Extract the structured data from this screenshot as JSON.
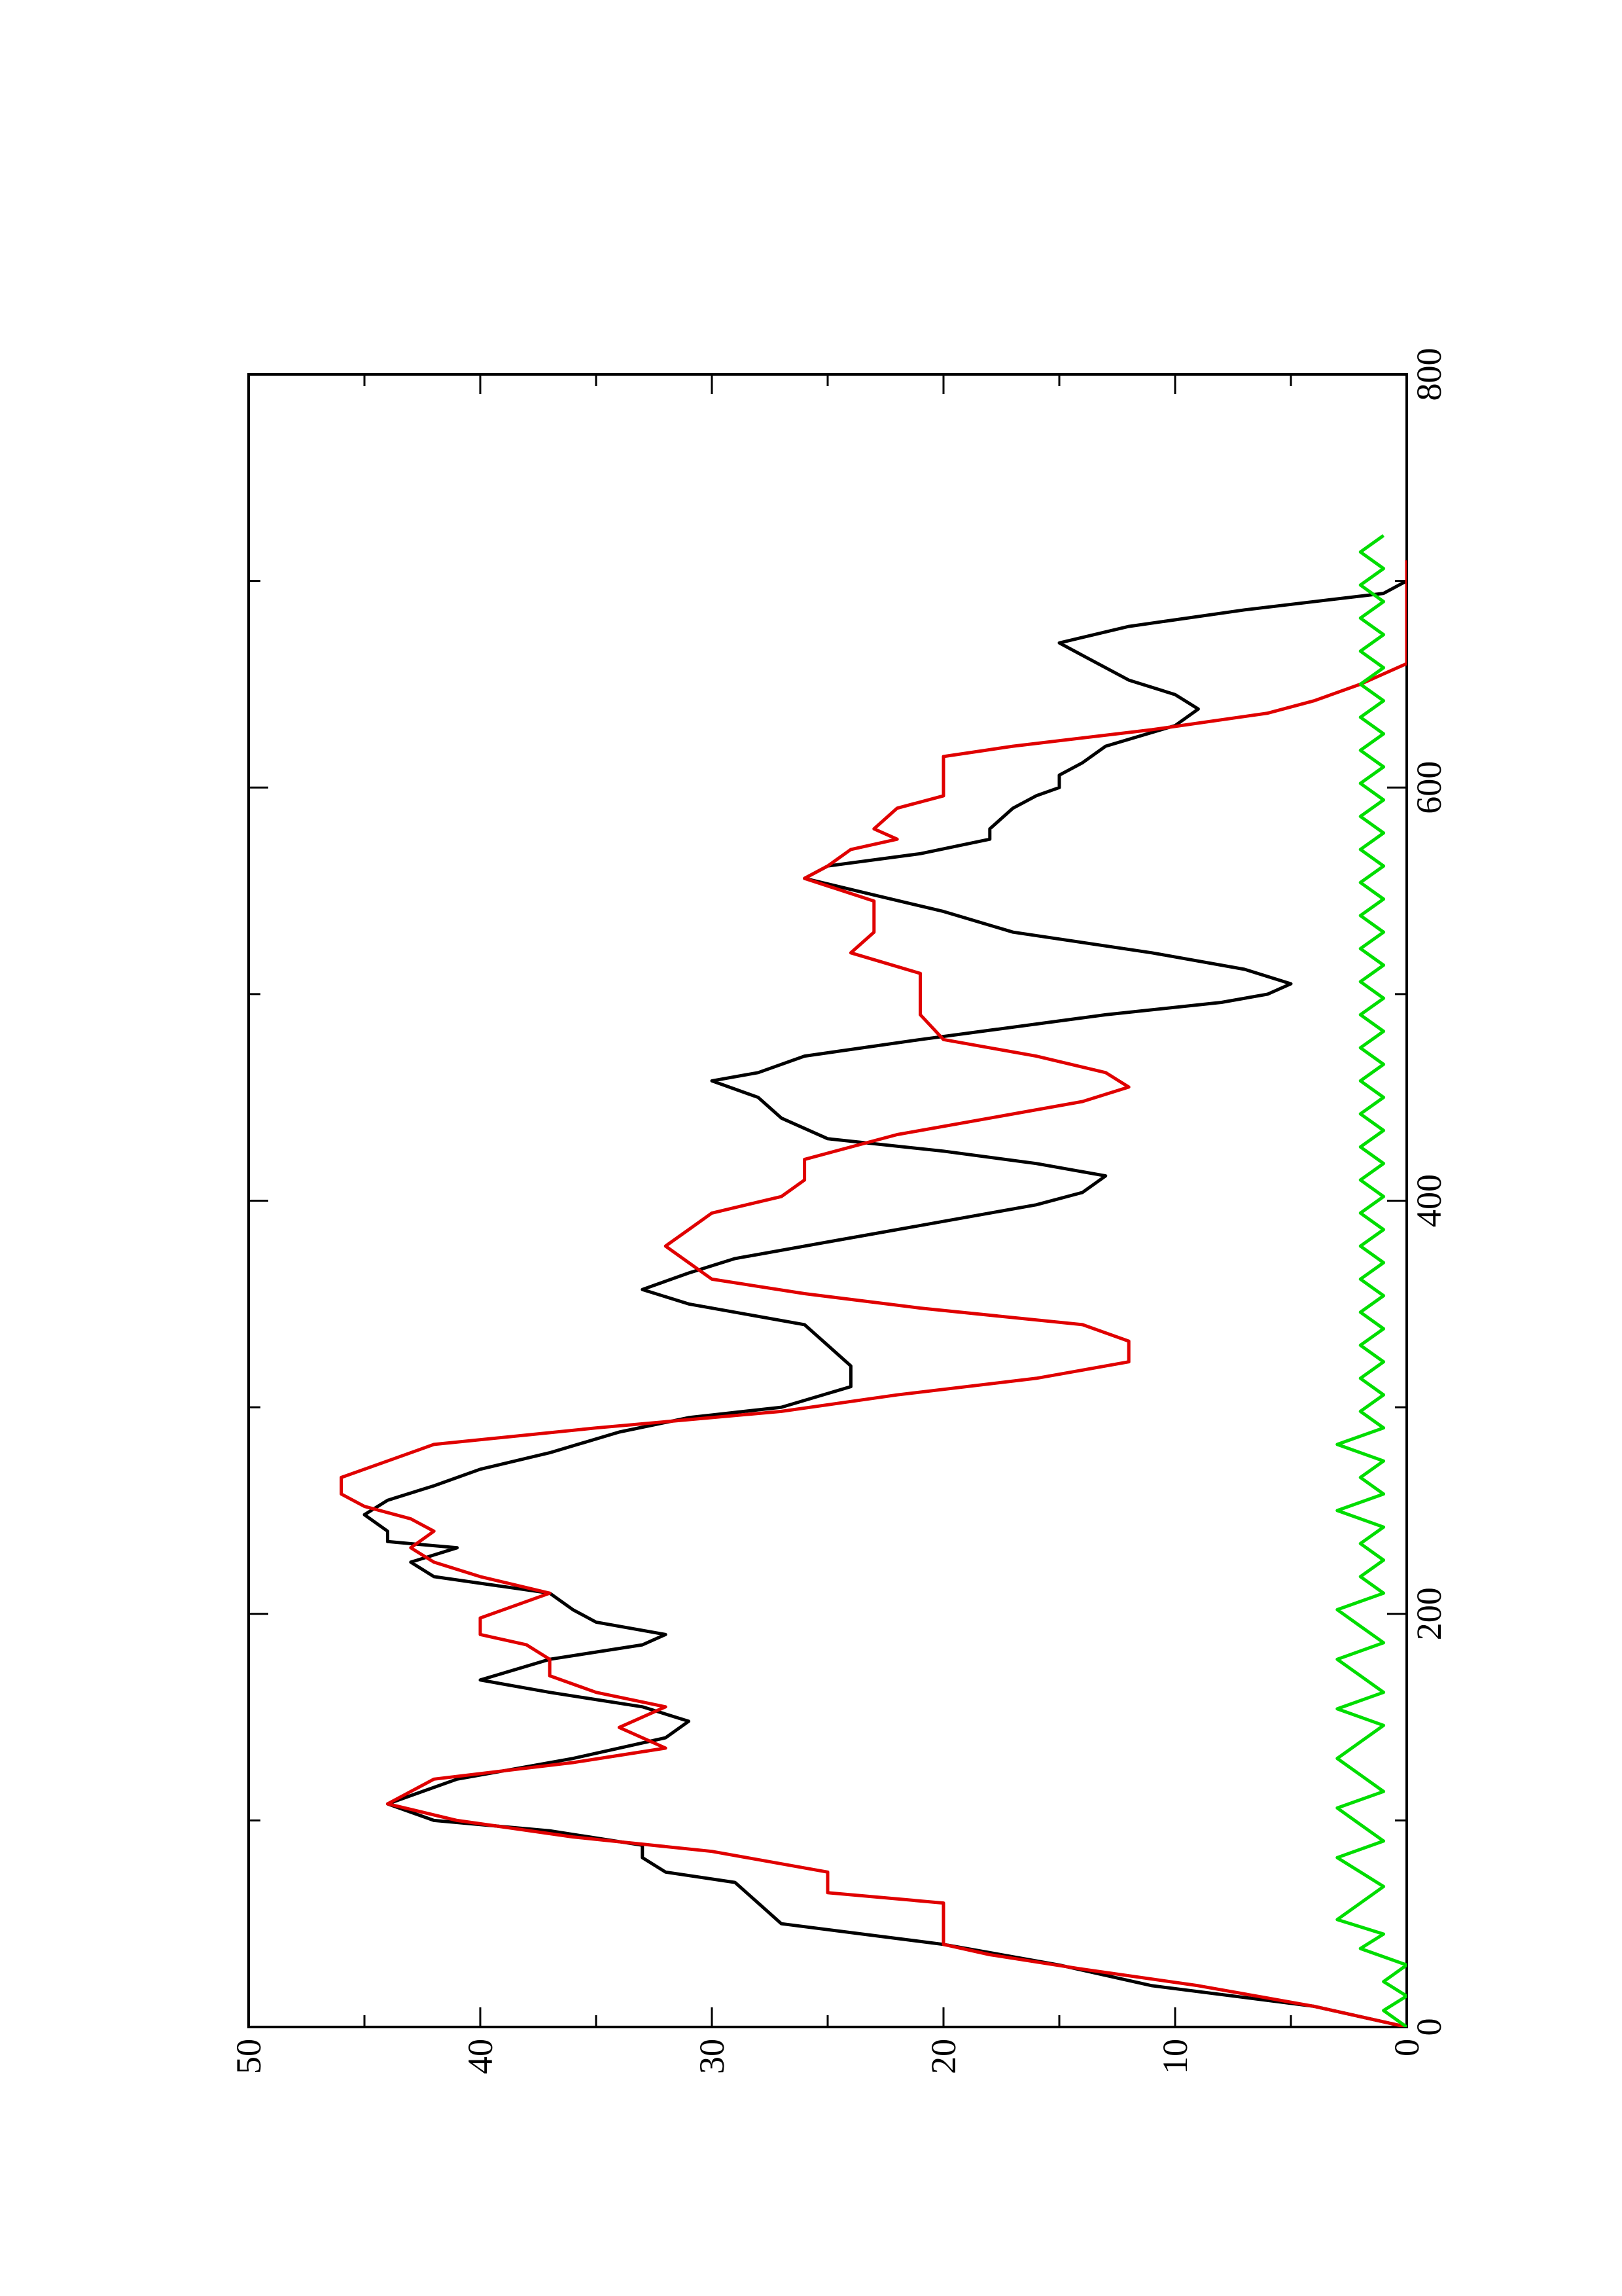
{
  "chart_data": {
    "type": "line",
    "title": "",
    "xlabel": "",
    "ylabel": "",
    "orientation": "rotated-90-ccw",
    "xlim": [
      0,
      800
    ],
    "ylim": [
      0,
      50
    ],
    "grid": false,
    "legend": "none",
    "x_ticks": [
      {
        "value": 0,
        "label": "0"
      },
      {
        "value": 200,
        "label": "200"
      },
      {
        "value": 400,
        "label": "400"
      },
      {
        "value": 600,
        "label": "600"
      },
      {
        "value": 800,
        "label": "800"
      }
    ],
    "x_minor_ticks": [
      100,
      300,
      500,
      700
    ],
    "y_ticks": [
      {
        "value": 0,
        "label": "0"
      },
      {
        "value": 10,
        "label": "10"
      },
      {
        "value": 20,
        "label": "20"
      },
      {
        "value": 30,
        "label": "30"
      },
      {
        "value": 40,
        "label": "40"
      },
      {
        "value": 50,
        "label": "50"
      }
    ],
    "y_minor_ticks": [
      5,
      15,
      25,
      35,
      45
    ],
    "series": [
      {
        "color": "#000000",
        "points": [
          [
            0,
            0
          ],
          [
            10,
            4
          ],
          [
            20,
            11
          ],
          [
            30,
            15
          ],
          [
            40,
            20
          ],
          [
            50,
            27
          ],
          [
            60,
            28
          ],
          [
            70,
            29
          ],
          [
            75,
            32
          ],
          [
            82,
            33
          ],
          [
            88,
            33
          ],
          [
            95,
            37
          ],
          [
            100,
            42
          ],
          [
            108,
            44
          ],
          [
            120,
            41
          ],
          [
            130,
            36
          ],
          [
            140,
            32
          ],
          [
            148,
            31
          ],
          [
            155,
            33
          ],
          [
            162,
            37
          ],
          [
            168,
            40
          ],
          [
            178,
            37
          ],
          [
            185,
            33
          ],
          [
            190,
            32
          ],
          [
            196,
            35
          ],
          [
            202,
            36
          ],
          [
            210,
            37
          ],
          [
            218,
            42
          ],
          [
            225,
            43
          ],
          [
            232,
            41
          ],
          [
            235,
            44
          ],
          [
            240,
            44
          ],
          [
            248,
            45
          ],
          [
            255,
            44
          ],
          [
            262,
            42
          ],
          [
            270,
            40
          ],
          [
            278,
            37
          ],
          [
            288,
            34
          ],
          [
            295,
            31
          ],
          [
            300,
            27
          ],
          [
            310,
            24
          ],
          [
            320,
            24
          ],
          [
            330,
            25
          ],
          [
            340,
            26
          ],
          [
            350,
            31
          ],
          [
            357,
            33
          ],
          [
            365,
            31
          ],
          [
            372,
            29
          ],
          [
            380,
            25
          ],
          [
            390,
            20
          ],
          [
            398,
            16
          ],
          [
            404,
            14
          ],
          [
            412,
            13
          ],
          [
            418,
            16
          ],
          [
            424,
            20
          ],
          [
            430,
            25
          ],
          [
            440,
            27
          ],
          [
            450,
            28
          ],
          [
            458,
            30
          ],
          [
            462,
            28
          ],
          [
            470,
            26
          ],
          [
            478,
            21
          ],
          [
            490,
            13
          ],
          [
            496,
            8
          ],
          [
            500,
            6
          ],
          [
            505,
            5
          ],
          [
            512,
            7
          ],
          [
            520,
            11
          ],
          [
            530,
            17
          ],
          [
            540,
            20
          ],
          [
            548,
            23
          ],
          [
            556,
            26
          ],
          [
            562,
            25
          ],
          [
            568,
            21
          ],
          [
            575,
            18
          ],
          [
            580,
            18
          ],
          [
            590,
            17
          ],
          [
            596,
            16
          ],
          [
            600,
            15
          ],
          [
            606,
            15
          ],
          [
            612,
            14
          ],
          [
            620,
            13
          ],
          [
            630,
            10
          ],
          [
            638,
            9
          ],
          [
            645,
            10
          ],
          [
            652,
            12
          ],
          [
            658,
            13
          ],
          [
            664,
            14
          ],
          [
            670,
            15
          ],
          [
            678,
            12
          ],
          [
            686,
            7
          ],
          [
            690,
            4
          ],
          [
            694,
            1
          ],
          [
            700,
            0
          ],
          [
            710,
            0
          ]
        ]
      },
      {
        "color": "#e00000",
        "points": [
          [
            0,
            0
          ],
          [
            10,
            4
          ],
          [
            20,
            9
          ],
          [
            28,
            14
          ],
          [
            35,
            18
          ],
          [
            40,
            20
          ],
          [
            50,
            20
          ],
          [
            60,
            20
          ],
          [
            65,
            25
          ],
          [
            75,
            25
          ],
          [
            85,
            30
          ],
          [
            92,
            36
          ],
          [
            100,
            41
          ],
          [
            108,
            44
          ],
          [
            120,
            42
          ],
          [
            128,
            36
          ],
          [
            135,
            32
          ],
          [
            145,
            34
          ],
          [
            155,
            32
          ],
          [
            162,
            35
          ],
          [
            170,
            37
          ],
          [
            178,
            37
          ],
          [
            185,
            38
          ],
          [
            190,
            40
          ],
          [
            198,
            40
          ],
          [
            210,
            37
          ],
          [
            218,
            40
          ],
          [
            225,
            42
          ],
          [
            232,
            43
          ],
          [
            240,
            42
          ],
          [
            246,
            43
          ],
          [
            252,
            45
          ],
          [
            258,
            46
          ],
          [
            266,
            46
          ],
          [
            274,
            44
          ],
          [
            282,
            42
          ],
          [
            290,
            35
          ],
          [
            298,
            27
          ],
          [
            306,
            22
          ],
          [
            314,
            16
          ],
          [
            322,
            12
          ],
          [
            332,
            12
          ],
          [
            340,
            14
          ],
          [
            348,
            21
          ],
          [
            355,
            26
          ],
          [
            362,
            30
          ],
          [
            370,
            31
          ],
          [
            378,
            32
          ],
          [
            386,
            31
          ],
          [
            394,
            30
          ],
          [
            402,
            27
          ],
          [
            410,
            26
          ],
          [
            420,
            26
          ],
          [
            432,
            22
          ],
          [
            440,
            18
          ],
          [
            448,
            14
          ],
          [
            455,
            12
          ],
          [
            462,
            13
          ],
          [
            470,
            16
          ],
          [
            478,
            20
          ],
          [
            490,
            21
          ],
          [
            500,
            21
          ],
          [
            510,
            21
          ],
          [
            520,
            24
          ],
          [
            530,
            23
          ],
          [
            545,
            23
          ],
          [
            556,
            26
          ],
          [
            562,
            25
          ],
          [
            570,
            24
          ],
          [
            575,
            22
          ],
          [
            580,
            23
          ],
          [
            590,
            22
          ],
          [
            596,
            20
          ],
          [
            602,
            20
          ],
          [
            608,
            20
          ],
          [
            615,
            20
          ],
          [
            620,
            17
          ],
          [
            628,
            11
          ],
          [
            636,
            6
          ],
          [
            642,
            4
          ],
          [
            650,
            2
          ],
          [
            660,
            0
          ],
          [
            670,
            0
          ],
          [
            680,
            0
          ],
          [
            690,
            0
          ],
          [
            700,
            0
          ],
          [
            710,
            0
          ]
        ]
      },
      {
        "color": "#00dd00",
        "points": [
          [
            0,
            0
          ],
          [
            8,
            1
          ],
          [
            15,
            0
          ],
          [
            22,
            1
          ],
          [
            30,
            0
          ],
          [
            38,
            2
          ],
          [
            45,
            1
          ],
          [
            52,
            3
          ],
          [
            60,
            2
          ],
          [
            68,
            1
          ],
          [
            75,
            2
          ],
          [
            82,
            3
          ],
          [
            90,
            1
          ],
          [
            98,
            2
          ],
          [
            106,
            3
          ],
          [
            114,
            1
          ],
          [
            122,
            2
          ],
          [
            130,
            3
          ],
          [
            138,
            2
          ],
          [
            146,
            1
          ],
          [
            154,
            3
          ],
          [
            162,
            1
          ],
          [
            170,
            2
          ],
          [
            178,
            3
          ],
          [
            186,
            1
          ],
          [
            194,
            2
          ],
          [
            202,
            3
          ],
          [
            210,
            1
          ],
          [
            218,
            2
          ],
          [
            226,
            1
          ],
          [
            234,
            2
          ],
          [
            242,
            1
          ],
          [
            250,
            3
          ],
          [
            258,
            1
          ],
          [
            266,
            2
          ],
          [
            274,
            1
          ],
          [
            282,
            3
          ],
          [
            290,
            1
          ],
          [
            298,
            2
          ],
          [
            306,
            1
          ],
          [
            314,
            2
          ],
          [
            322,
            1
          ],
          [
            330,
            2
          ],
          [
            338,
            1
          ],
          [
            346,
            2
          ],
          [
            354,
            1
          ],
          [
            362,
            2
          ],
          [
            370,
            1
          ],
          [
            378,
            2
          ],
          [
            386,
            1
          ],
          [
            394,
            2
          ],
          [
            402,
            1
          ],
          [
            410,
            2
          ],
          [
            418,
            1
          ],
          [
            426,
            2
          ],
          [
            434,
            1
          ],
          [
            442,
            2
          ],
          [
            450,
            1
          ],
          [
            458,
            2
          ],
          [
            466,
            1
          ],
          [
            474,
            2
          ],
          [
            482,
            1
          ],
          [
            490,
            2
          ],
          [
            498,
            1
          ],
          [
            506,
            2
          ],
          [
            514,
            1
          ],
          [
            522,
            2
          ],
          [
            530,
            1
          ],
          [
            538,
            2
          ],
          [
            546,
            1
          ],
          [
            554,
            2
          ],
          [
            562,
            1
          ],
          [
            570,
            2
          ],
          [
            578,
            1
          ],
          [
            586,
            2
          ],
          [
            594,
            1
          ],
          [
            602,
            2
          ],
          [
            610,
            1
          ],
          [
            618,
            2
          ],
          [
            626,
            1
          ],
          [
            634,
            2
          ],
          [
            642,
            1
          ],
          [
            650,
            2
          ],
          [
            658,
            1
          ],
          [
            666,
            2
          ],
          [
            674,
            1
          ],
          [
            682,
            2
          ],
          [
            690,
            1
          ],
          [
            698,
            2
          ],
          [
            706,
            1
          ],
          [
            714,
            2
          ],
          [
            722,
            1
          ]
        ]
      }
    ]
  }
}
